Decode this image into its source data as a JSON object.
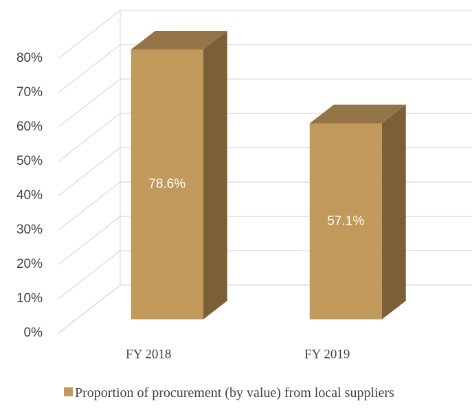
{
  "chart_data": {
    "type": "bar3d",
    "categories": [
      "FY 2018",
      "FY 2019"
    ],
    "series": [
      {
        "name": "Proportion of procurement (by value) from local suppliers",
        "color": "#c19a5b",
        "values": [
          78.6,
          57.1
        ],
        "value_labels": [
          "78.6%",
          "57.1%"
        ]
      }
    ],
    "ylim": [
      0,
      80
    ],
    "yticks": [
      {
        "value": 0,
        "label": "0%"
      },
      {
        "value": 10,
        "label": "10%"
      },
      {
        "value": 20,
        "label": "20%"
      },
      {
        "value": 30,
        "label": "30%"
      },
      {
        "value": 40,
        "label": "40%"
      },
      {
        "value": 50,
        "label": "50%"
      },
      {
        "value": 60,
        "label": "60%"
      },
      {
        "value": 70,
        "label": "70%"
      },
      {
        "value": 80,
        "label": "80%"
      }
    ],
    "grid": true,
    "legend": "bottom"
  }
}
